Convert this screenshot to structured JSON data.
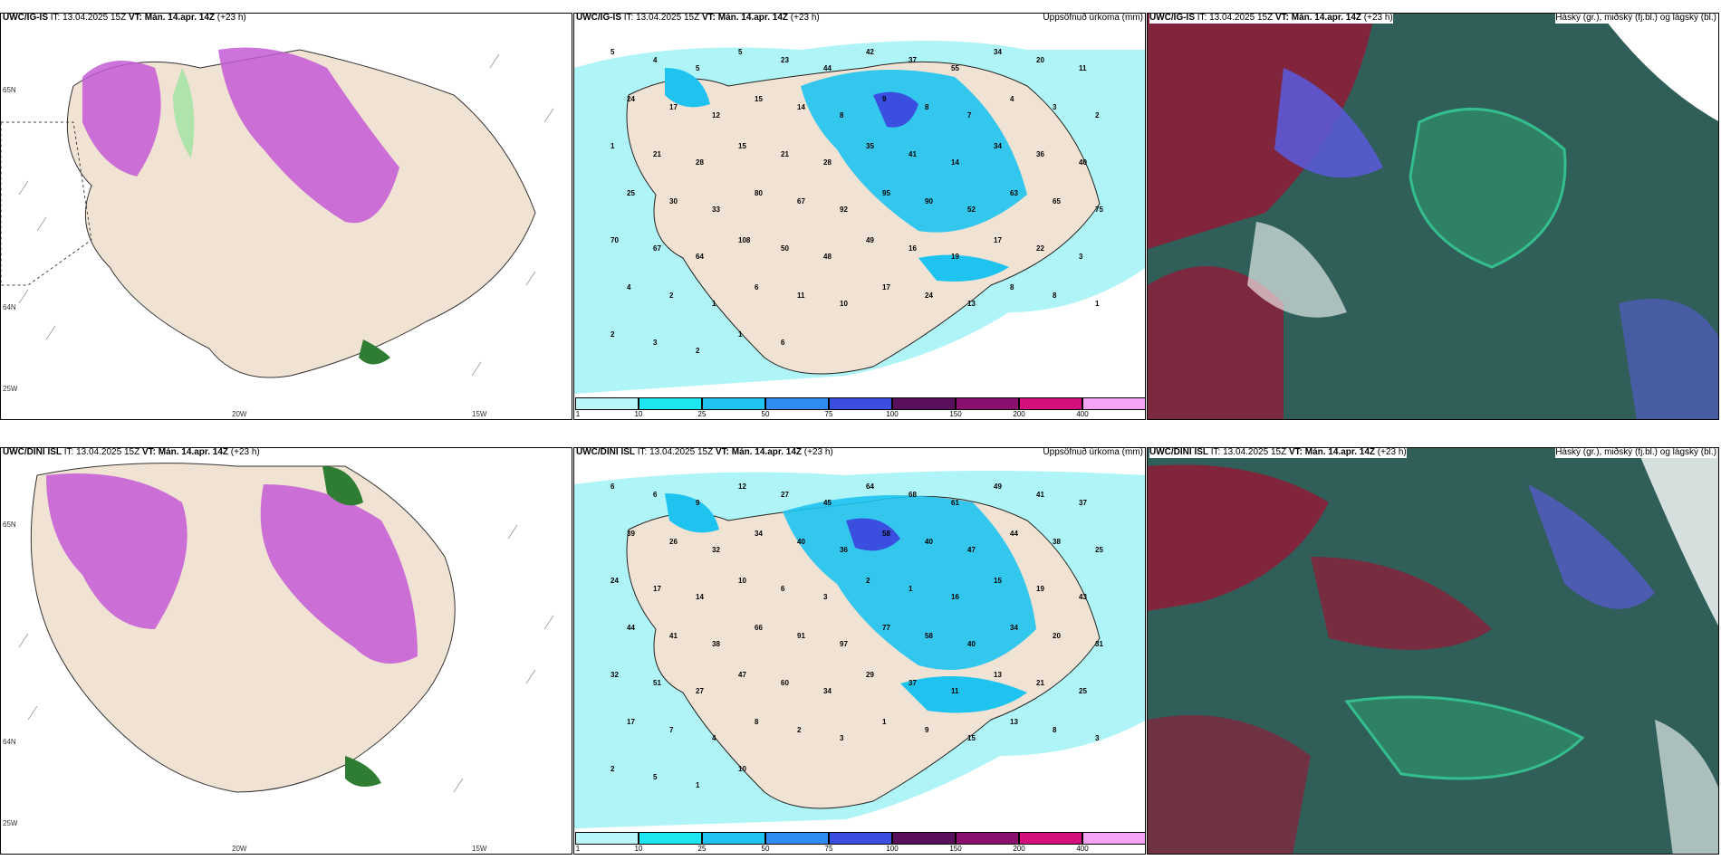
{
  "panels": {
    "p1": {
      "title_bold": "UWC/IG-IS",
      "title_it": "IT: 13.04.2025 15Z",
      "title_vt_label": "VT:",
      "title_vt": "Mán. 14.apr. 14Z",
      "title_lead": "(+23 h)",
      "lon_labels": [
        "20W",
        "15W",
        "25W"
      ],
      "lat_labels": [
        "65N",
        "64N"
      ]
    },
    "p2": {
      "title_bold": "UWC/IG-IS",
      "title_it": "IT: 13.04.2025 15Z",
      "title_vt_label": "VT:",
      "title_vt": "Mán. 14.apr. 14Z",
      "title_lead": "(+23 h)",
      "right_title": "Uppsöfnuð úrkoma (mm)",
      "values": [
        "5",
        "4",
        "5",
        "5",
        "23",
        "44",
        "42",
        "37",
        "55",
        "34",
        "20",
        "11",
        "24",
        "17",
        "12",
        "15",
        "14",
        "8",
        "9",
        "8",
        "7",
        "4",
        "3",
        "2",
        "1",
        "21",
        "28",
        "15",
        "21",
        "28",
        "35",
        "41",
        "14",
        "34",
        "36",
        "40",
        "25",
        "30",
        "33",
        "80",
        "67",
        "92",
        "95",
        "90",
        "52",
        "63",
        "65",
        "75",
        "70",
        "67",
        "64",
        "108",
        "50",
        "48",
        "49",
        "16",
        "19",
        "17",
        "22",
        "3",
        "4",
        "2",
        "1",
        "6",
        "11",
        "10",
        "17",
        "24",
        "13",
        "8",
        "8",
        "1",
        "2",
        "3",
        "2",
        "1",
        "6"
      ]
    },
    "p3": {
      "title_bold": "UWC/IG-IS",
      "title_it": "IT: 13.04.2025 15Z",
      "title_vt_label": "VT:",
      "title_vt": "Mán. 14.apr. 14Z",
      "title_lead": "(+23 h)",
      "right_title": "Háský (gr.), miðský (fj.bl.) og lágský (bl.)"
    },
    "p4": {
      "title_bold": "UWC/DINI ISL",
      "title_it": "IT: 13.04.2025 15Z",
      "title_vt_label": "VT:",
      "title_vt": "Mán. 14.apr. 14Z",
      "title_lead": "(+23 h)",
      "lon_labels": [
        "20W",
        "15W",
        "25W"
      ],
      "lat_labels": [
        "65N",
        "64N"
      ]
    },
    "p5": {
      "title_bold": "UWC/DINI ISL",
      "title_it": "IT: 13.04.2025 15Z",
      "title_vt_label": "VT:",
      "title_vt": "Mán. 14.apr. 14Z",
      "title_lead": "(+23 h)",
      "right_title": "Uppsöfnuð úrkoma (mm)",
      "values": [
        "6",
        "6",
        "9",
        "12",
        "27",
        "45",
        "64",
        "68",
        "61",
        "49",
        "41",
        "37",
        "39",
        "26",
        "32",
        "34",
        "40",
        "36",
        "58",
        "40",
        "47",
        "44",
        "38",
        "25",
        "24",
        "17",
        "14",
        "10",
        "6",
        "3",
        "2",
        "1",
        "16",
        "15",
        "19",
        "43",
        "44",
        "41",
        "38",
        "66",
        "91",
        "97",
        "77",
        "58",
        "40",
        "34",
        "20",
        "31",
        "32",
        "51",
        "27",
        "47",
        "60",
        "34",
        "29",
        "37",
        "11",
        "13",
        "21",
        "25",
        "17",
        "7",
        "4",
        "8",
        "2",
        "3",
        "1",
        "9",
        "15",
        "13",
        "8",
        "3",
        "2",
        "5",
        "1",
        "10"
      ]
    },
    "p6": {
      "title_bold": "UWC/DINI ISL",
      "title_it": "IT: 13.04.2025 15Z",
      "title_vt_label": "VT:",
      "title_vt": "Mán. 14.apr. 14Z",
      "title_lead": "(+23 h)",
      "right_title": "Háský (gr.), miðský (fj.bl.) og lágský (bl.)"
    }
  },
  "precip_legend": {
    "labels": [
      "1",
      "10",
      "25",
      "50",
      "75",
      "100",
      "150",
      "200",
      "400"
    ],
    "colors": [
      "#b9f6f9",
      "#1ee6f0",
      "#1ec3ef",
      "#2f8cf0",
      "#3a4ee0",
      "#5a0f5a",
      "#8a0f6f",
      "#d4107f",
      "#f4a4f4"
    ]
  },
  "colors": {
    "land": "#f1e3d3",
    "sea_precip": "#aff4f7",
    "pink": "#c45bd6",
    "green": "#a6e3a6",
    "cloud_dark": "#2f5f58",
    "cloud_red": "#8a1f3a",
    "cloud_blue": "#5a5ad6"
  }
}
